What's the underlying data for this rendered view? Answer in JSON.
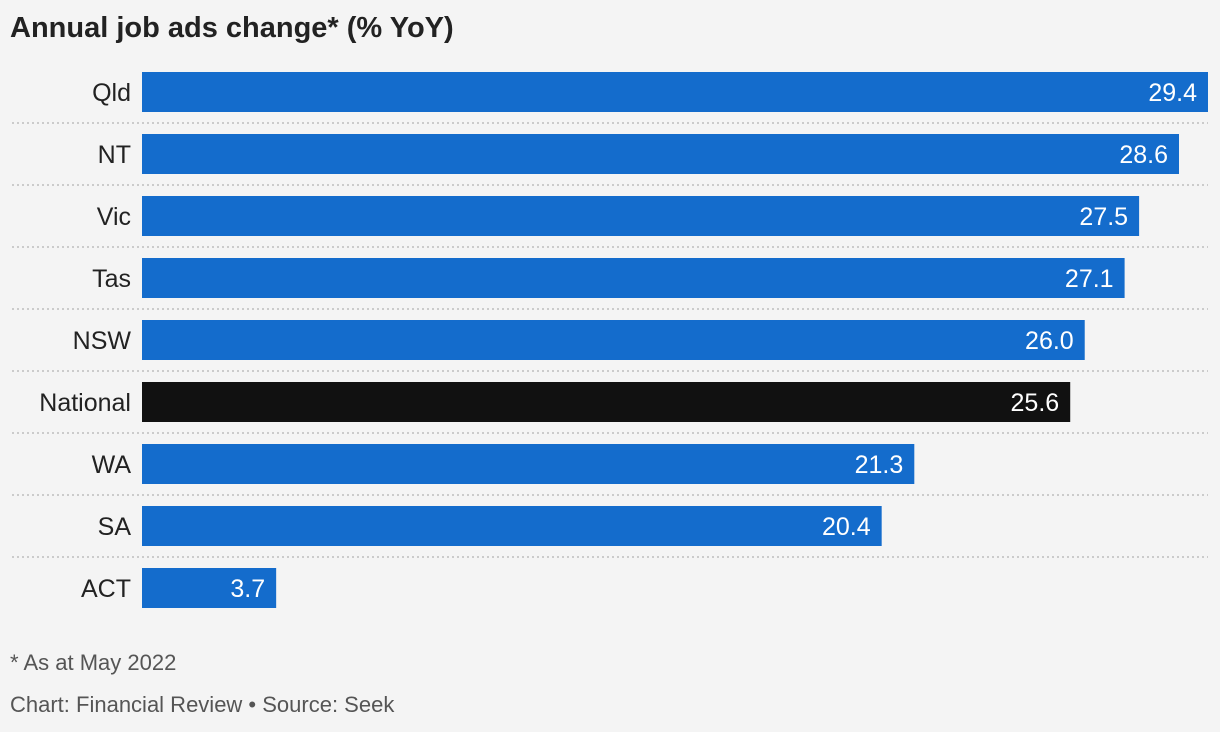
{
  "chart_data": {
    "type": "bar",
    "orientation": "horizontal",
    "title": "Annual job ads change* (% YoY)",
    "categories": [
      "Qld",
      "NT",
      "Vic",
      "Tas",
      "NSW",
      "National",
      "WA",
      "SA",
      "ACT"
    ],
    "values": [
      29.4,
      28.6,
      27.5,
      27.1,
      26.0,
      25.6,
      21.3,
      20.4,
      3.7
    ],
    "value_labels": [
      "29.4",
      "28.6",
      "27.5",
      "27.1",
      "26.0",
      "25.6",
      "21.3",
      "20.4",
      "3.7"
    ],
    "highlight": "National",
    "colors": {
      "bar": "#146ccc",
      "highlight_bar": "#111111",
      "separator": "#bdbdbd",
      "background": "#f4f4f4"
    },
    "xlim": [
      0,
      29.4
    ],
    "grid": false,
    "legend": "none"
  },
  "footnote": "* As at May 2022",
  "source": "Chart: Financial Review • Source: Seek"
}
